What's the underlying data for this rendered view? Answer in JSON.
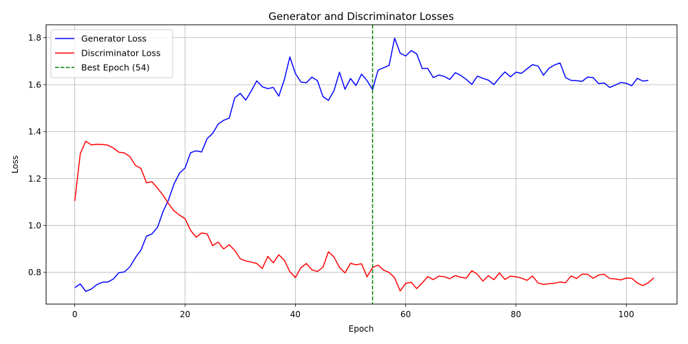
{
  "chart_data": {
    "type": "line",
    "title": "Generator and Discriminator Losses",
    "xlabel": "Epoch",
    "ylabel": "Loss",
    "xlim": [
      -5.2,
      109.2
    ],
    "ylim": [
      0.665,
      1.855
    ],
    "xticks": [
      0,
      20,
      40,
      60,
      80,
      100
    ],
    "yticks": [
      0.8,
      1.0,
      1.2,
      1.4,
      1.6,
      1.8
    ],
    "xtick_labels": [
      "0",
      "20",
      "40",
      "60",
      "80",
      "100"
    ],
    "ytick_labels": [
      "0.8",
      "1.0",
      "1.2",
      "1.4",
      "1.6",
      "1.8"
    ],
    "grid": true,
    "legend_position": "top-left",
    "series": [
      {
        "name": "Generator Loss",
        "color": "#0000ff",
        "style": "solid",
        "values": [
          0.735,
          0.751,
          0.719,
          0.729,
          0.748,
          0.758,
          0.759,
          0.772,
          0.799,
          0.802,
          0.824,
          0.863,
          0.895,
          0.954,
          0.964,
          0.992,
          1.059,
          1.109,
          1.177,
          1.223,
          1.245,
          1.31,
          1.318,
          1.313,
          1.37,
          1.392,
          1.432,
          1.448,
          1.457,
          1.543,
          1.563,
          1.534,
          1.573,
          1.616,
          1.591,
          1.583,
          1.588,
          1.551,
          1.621,
          1.718,
          1.648,
          1.611,
          1.608,
          1.632,
          1.617,
          1.549,
          1.533,
          1.574,
          1.653,
          1.58,
          1.626,
          1.596,
          1.645,
          1.617,
          1.579,
          1.662,
          1.672,
          1.682,
          1.798,
          1.734,
          1.722,
          1.745,
          1.731,
          1.669,
          1.669,
          1.63,
          1.641,
          1.635,
          1.622,
          1.651,
          1.639,
          1.622,
          1.601,
          1.636,
          1.627,
          1.619,
          1.6,
          1.629,
          1.654,
          1.633,
          1.653,
          1.648,
          1.667,
          1.685,
          1.679,
          1.64,
          1.67,
          1.684,
          1.692,
          1.63,
          1.618,
          1.617,
          1.614,
          1.632,
          1.63,
          1.604,
          1.607,
          1.588,
          1.598,
          1.609,
          1.606,
          1.595,
          1.627,
          1.615,
          1.618
        ]
      },
      {
        "name": "Discriminator Loss",
        "color": "#ff0000",
        "style": "solid",
        "values": [
          1.104,
          1.306,
          1.359,
          1.343,
          1.346,
          1.345,
          1.342,
          1.33,
          1.312,
          1.309,
          1.293,
          1.256,
          1.243,
          1.182,
          1.186,
          1.159,
          1.129,
          1.093,
          1.062,
          1.044,
          1.029,
          0.979,
          0.95,
          0.968,
          0.964,
          0.914,
          0.929,
          0.9,
          0.918,
          0.894,
          0.858,
          0.849,
          0.844,
          0.838,
          0.817,
          0.868,
          0.841,
          0.875,
          0.852,
          0.803,
          0.778,
          0.82,
          0.838,
          0.811,
          0.804,
          0.822,
          0.888,
          0.866,
          0.821,
          0.798,
          0.839,
          0.832,
          0.837,
          0.781,
          0.821,
          0.831,
          0.81,
          0.8,
          0.777,
          0.721,
          0.753,
          0.758,
          0.731,
          0.755,
          0.782,
          0.769,
          0.784,
          0.782,
          0.773,
          0.787,
          0.779,
          0.776,
          0.807,
          0.792,
          0.763,
          0.786,
          0.769,
          0.798,
          0.77,
          0.784,
          0.781,
          0.776,
          0.766,
          0.785,
          0.755,
          0.749,
          0.752,
          0.754,
          0.759,
          0.756,
          0.785,
          0.774,
          0.793,
          0.792,
          0.775,
          0.789,
          0.792,
          0.774,
          0.772,
          0.768,
          0.776,
          0.775,
          0.755,
          0.744,
          0.756,
          0.777
        ]
      }
    ],
    "vlines": [
      {
        "name": "Best Epoch (54)",
        "x": 54,
        "color": "#008000",
        "style": "dashed"
      }
    ]
  }
}
